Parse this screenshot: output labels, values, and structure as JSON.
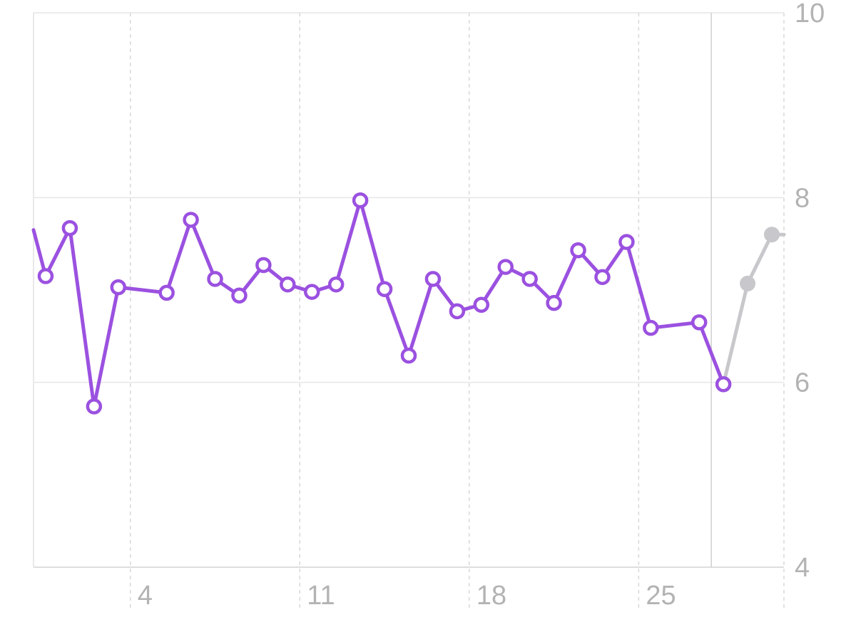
{
  "chart_data": {
    "type": "line",
    "title": "",
    "xlabel": "",
    "ylabel": "",
    "x_range": [
      0,
      31
    ],
    "x_ticks": [
      {
        "x": 4,
        "label": "4"
      },
      {
        "x": 11,
        "label": "11"
      },
      {
        "x": 18,
        "label": "18"
      },
      {
        "x": 25,
        "label": "25"
      }
    ],
    "ylim": [
      4,
      10
    ],
    "y_ticks": [
      {
        "y": 10,
        "label": "10"
      },
      {
        "y": 8,
        "label": "8"
      },
      {
        "y": 6,
        "label": "6"
      },
      {
        "y": 4,
        "label": "4"
      }
    ],
    "grid": true,
    "series": [
      {
        "role": "recorded",
        "color": "#9b51e0",
        "marker": "hollow-circle",
        "points": [
          {
            "x": 0,
            "y": 7.65
          },
          {
            "x": 0.5,
            "y": 7.15
          },
          {
            "x": 1.5,
            "y": 7.67
          },
          {
            "x": 2.5,
            "y": 5.74
          },
          {
            "x": 3.5,
            "y": 7.03
          },
          {
            "x": 5.5,
            "y": 6.97
          },
          {
            "x": 6.5,
            "y": 7.76
          },
          {
            "x": 7.5,
            "y": 7.12
          },
          {
            "x": 8.5,
            "y": 6.94
          },
          {
            "x": 9.5,
            "y": 7.27
          },
          {
            "x": 10.5,
            "y": 7.06
          },
          {
            "x": 11.5,
            "y": 6.98
          },
          {
            "x": 12.5,
            "y": 7.06
          },
          {
            "x": 13.5,
            "y": 7.97
          },
          {
            "x": 14.5,
            "y": 7.01
          },
          {
            "x": 15.5,
            "y": 6.29
          },
          {
            "x": 16.5,
            "y": 7.12
          },
          {
            "x": 17.5,
            "y": 6.77
          },
          {
            "x": 18.5,
            "y": 6.84
          },
          {
            "x": 19.5,
            "y": 7.25
          },
          {
            "x": 20.5,
            "y": 7.12
          },
          {
            "x": 21.5,
            "y": 6.86
          },
          {
            "x": 22.5,
            "y": 7.43
          },
          {
            "x": 23.5,
            "y": 7.14
          },
          {
            "x": 24.5,
            "y": 7.52
          },
          {
            "x": 25.5,
            "y": 6.59
          },
          {
            "x": 27.5,
            "y": 6.65
          },
          {
            "x": 28.5,
            "y": 5.98
          }
        ]
      },
      {
        "role": "projected",
        "color": "#c7c7cc",
        "marker": "filled-circle",
        "points": [
          {
            "x": 28.5,
            "y": 5.98
          },
          {
            "x": 29.5,
            "y": 7.07
          },
          {
            "x": 30.5,
            "y": 7.6
          },
          {
            "x": 31,
            "y": 7.6
          }
        ]
      }
    ],
    "current_marker_x": 28
  }
}
